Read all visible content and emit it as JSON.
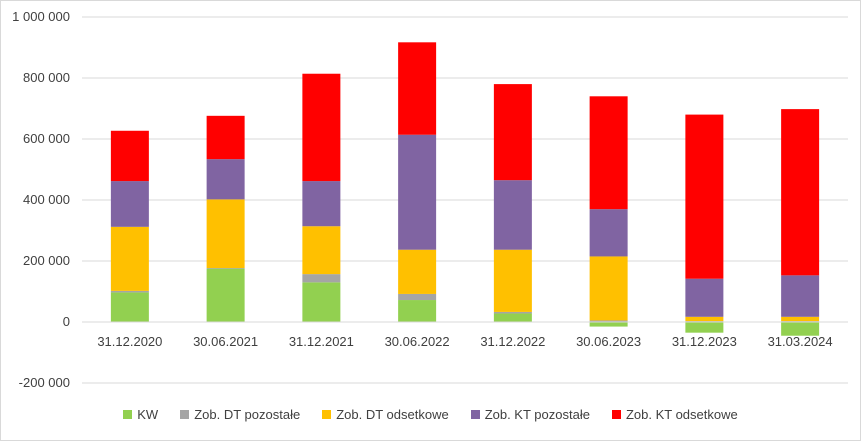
{
  "chart_data": {
    "type": "bar",
    "stacked": true,
    "categories": [
      "31.12.2020",
      "30.06.2021",
      "31.12.2021",
      "30.06.2022",
      "31.12.2022",
      "30.06.2023",
      "31.12.2023",
      "31.03.2024"
    ],
    "series": [
      {
        "name": "KW",
        "color": "#92d050",
        "values": [
          97000,
          175000,
          130000,
          72000,
          28000,
          -15000,
          -35000,
          -45000
        ]
      },
      {
        "name": "Zob. DT pozostałe",
        "color": "#a5a5a5",
        "values": [
          5000,
          2000,
          27000,
          20000,
          5000,
          5000,
          3000,
          3000
        ]
      },
      {
        "name": "Zob. DT odsetkowe",
        "color": "#ffc000",
        "values": [
          210000,
          225000,
          157000,
          145000,
          204000,
          210000,
          14000,
          14000
        ]
      },
      {
        "name": "Zob. KT pozostałe",
        "color": "#8064a2",
        "values": [
          150000,
          132000,
          148000,
          377000,
          228000,
          155000,
          125000,
          136000
        ]
      },
      {
        "name": "Zob. KT odsetkowe",
        "color": "#ff0000",
        "values": [
          165000,
          142000,
          352000,
          303000,
          315000,
          370000,
          538000,
          545000
        ]
      }
    ],
    "ylim": [
      -200000,
      1000000
    ],
    "yticks": [
      -200000,
      0,
      200000,
      400000,
      600000,
      800000,
      1000000
    ],
    "ytick_labels": [
      "-200 000",
      "0",
      "200 000",
      "400 000",
      "600 000",
      "800 000",
      "1 000 000"
    ],
    "grid": true,
    "legend_position": "bottom"
  }
}
